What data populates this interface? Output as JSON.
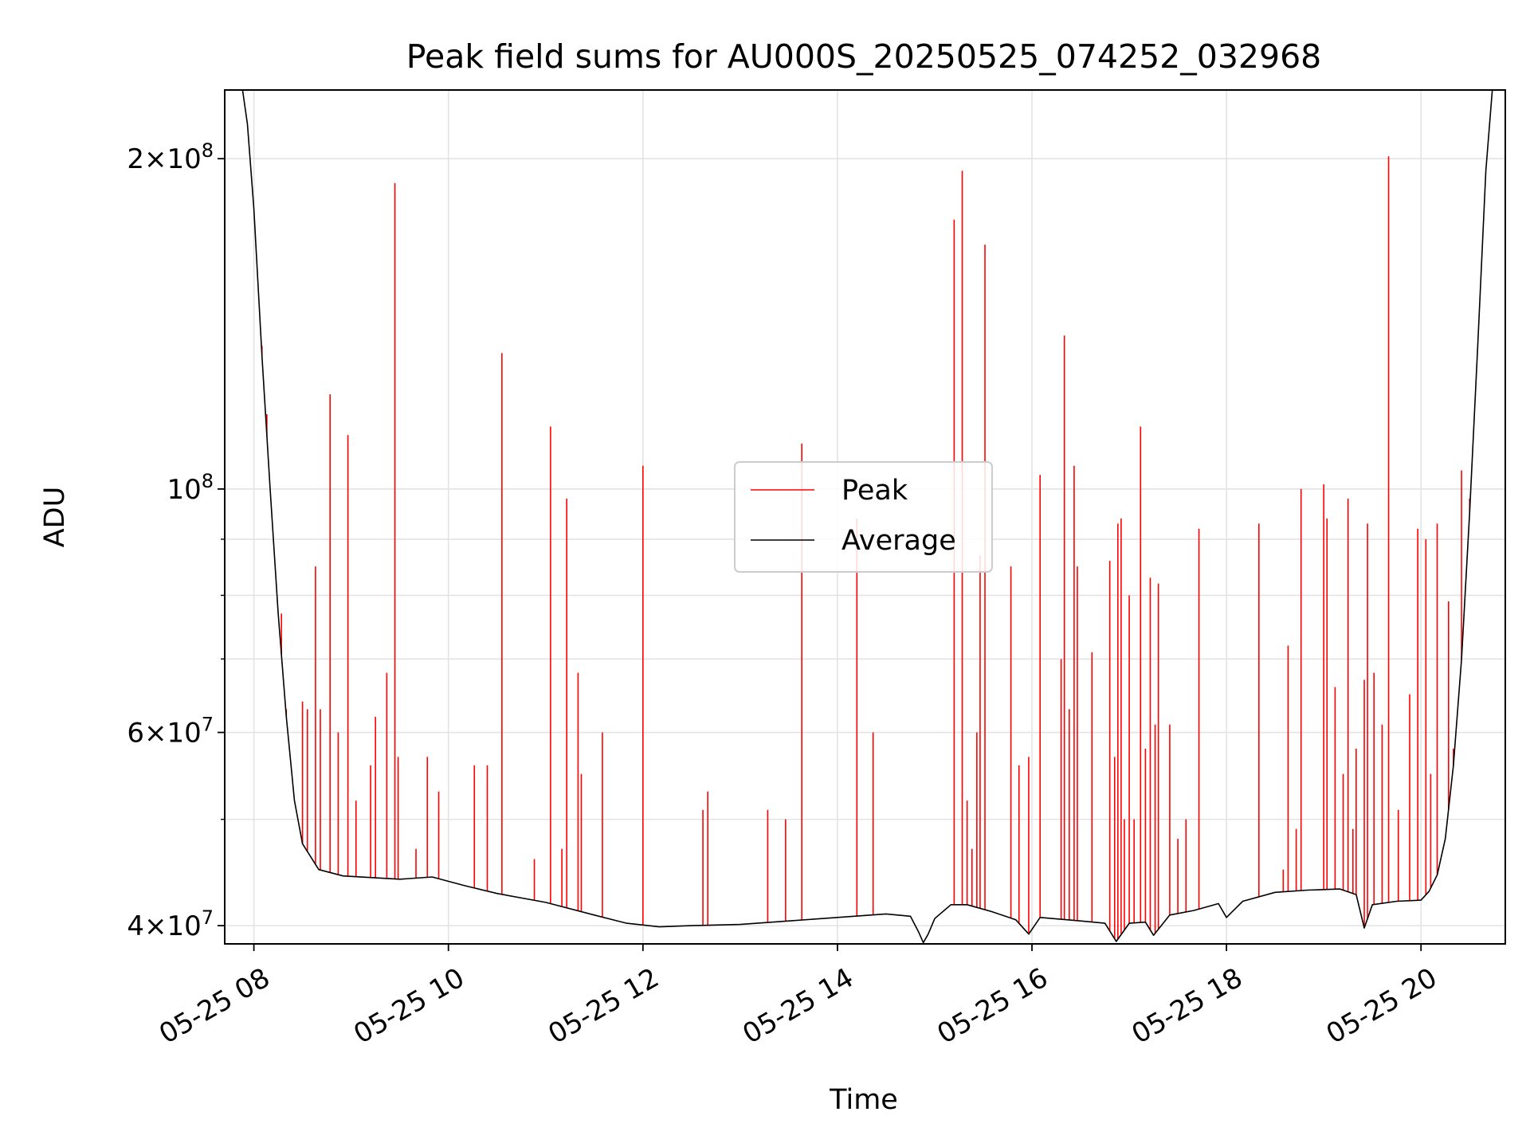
{
  "chart_data": {
    "type": "line",
    "title": "Peak field sums for AU000S_20250525_074252_032968",
    "xlabel": "Time",
    "ylabel": "ADU",
    "y_scale": "log",
    "ylim": [
      38500000,
      231000000
    ],
    "xlim": [
      "2025-05-25 07:42",
      "2025-05-25 20:52"
    ],
    "grid": true,
    "legend_position": "center",
    "x_ticks": [
      {
        "t": "2025-05-25 08:00",
        "label": "05-25 08"
      },
      {
        "t": "2025-05-25 10:00",
        "label": "05-25 10"
      },
      {
        "t": "2025-05-25 12:00",
        "label": "05-25 12"
      },
      {
        "t": "2025-05-25 14:00",
        "label": "05-25 14"
      },
      {
        "t": "2025-05-25 16:00",
        "label": "05-25 16"
      },
      {
        "t": "2025-05-25 18:00",
        "label": "05-25 18"
      },
      {
        "t": "2025-05-25 20:00",
        "label": "05-25 20"
      }
    ],
    "y_ticks": [
      {
        "v": 40000000,
        "mant": "4",
        "exp": "7"
      },
      {
        "v": 60000000,
        "mant": "6",
        "exp": "7"
      },
      {
        "v": 100000000,
        "mant": "",
        "exp": "8"
      },
      {
        "v": 200000000,
        "mant": "2",
        "exp": "8"
      }
    ],
    "y_minor_ticks": [
      50000000,
      70000000,
      80000000,
      90000000
    ],
    "series": [
      {
        "name": "Average",
        "color": "#000000",
        "points": [
          [
            "2025-05-25 07:42",
            231000000
          ],
          [
            "2025-05-25 07:53",
            231000000
          ],
          [
            "2025-05-25 07:56",
            215000000
          ],
          [
            "2025-05-25 08:00",
            180000000
          ],
          [
            "2025-05-25 08:05",
            132000000
          ],
          [
            "2025-05-25 08:10",
            100000000
          ],
          [
            "2025-05-25 08:15",
            77000000
          ],
          [
            "2025-05-25 08:20",
            62000000
          ],
          [
            "2025-05-25 08:25",
            52000000
          ],
          [
            "2025-05-25 08:30",
            47500000
          ],
          [
            "2025-05-25 08:40",
            45000000
          ],
          [
            "2025-05-25 08:55",
            44400000
          ],
          [
            "2025-05-25 09:30",
            44100000
          ],
          [
            "2025-05-25 09:50",
            44300000
          ],
          [
            "2025-05-25 10:10",
            43500000
          ],
          [
            "2025-05-25 10:30",
            42800000
          ],
          [
            "2025-05-25 11:00",
            42000000
          ],
          [
            "2025-05-25 11:30",
            40900000
          ],
          [
            "2025-05-25 11:50",
            40200000
          ],
          [
            "2025-05-25 12:10",
            39900000
          ],
          [
            "2025-05-25 12:30",
            40000000
          ],
          [
            "2025-05-25 13:00",
            40100000
          ],
          [
            "2025-05-25 13:30",
            40400000
          ],
          [
            "2025-05-25 14:00",
            40700000
          ],
          [
            "2025-05-25 14:30",
            41000000
          ],
          [
            "2025-05-25 14:45",
            40800000
          ],
          [
            "2025-05-25 14:50",
            39500000
          ],
          [
            "2025-05-25 14:53",
            38600000
          ],
          [
            "2025-05-25 14:56",
            39300000
          ],
          [
            "2025-05-25 15:00",
            40600000
          ],
          [
            "2025-05-25 15:10",
            41800000
          ],
          [
            "2025-05-25 15:20",
            41800000
          ],
          [
            "2025-05-25 15:35",
            41200000
          ],
          [
            "2025-05-25 15:50",
            40500000
          ],
          [
            "2025-05-25 15:58",
            39300000
          ],
          [
            "2025-05-25 16:05",
            40700000
          ],
          [
            "2025-05-25 16:30",
            40400000
          ],
          [
            "2025-05-25 16:45",
            40200000
          ],
          [
            "2025-05-25 16:52",
            38700000
          ],
          [
            "2025-05-25 17:00",
            40200000
          ],
          [
            "2025-05-25 17:10",
            40300000
          ],
          [
            "2025-05-25 17:15",
            39200000
          ],
          [
            "2025-05-25 17:25",
            40900000
          ],
          [
            "2025-05-25 17:40",
            41300000
          ],
          [
            "2025-05-25 17:55",
            41900000
          ],
          [
            "2025-05-25 18:00",
            40700000
          ],
          [
            "2025-05-25 18:10",
            42100000
          ],
          [
            "2025-05-25 18:30",
            42900000
          ],
          [
            "2025-05-25 18:50",
            43100000
          ],
          [
            "2025-05-25 19:10",
            43200000
          ],
          [
            "2025-05-25 19:20",
            42700000
          ],
          [
            "2025-05-25 19:25",
            39800000
          ],
          [
            "2025-05-25 19:30",
            41800000
          ],
          [
            "2025-05-25 19:45",
            42100000
          ],
          [
            "2025-05-25 20:00",
            42200000
          ],
          [
            "2025-05-25 20:05",
            43000000
          ],
          [
            "2025-05-25 20:10",
            44500000
          ],
          [
            "2025-05-25 20:15",
            48000000
          ],
          [
            "2025-05-25 20:20",
            56000000
          ],
          [
            "2025-05-25 20:25",
            70000000
          ],
          [
            "2025-05-25 20:30",
            95000000
          ],
          [
            "2025-05-25 20:35",
            135000000
          ],
          [
            "2025-05-25 20:40",
            195000000
          ],
          [
            "2025-05-25 20:44",
            231000000
          ],
          [
            "2025-05-25 20:52",
            231000000
          ]
        ]
      },
      {
        "name": "Peak",
        "color": "#ff0000",
        "spikes": [
          [
            "2025-05-25 08:05",
            135000000
          ],
          [
            "2025-05-25 08:08",
            117000000
          ],
          [
            "2025-05-25 08:17",
            77000000
          ],
          [
            "2025-05-25 08:20",
            63000000
          ],
          [
            "2025-05-25 08:30",
            64000000
          ],
          [
            "2025-05-25 08:33",
            63000000
          ],
          [
            "2025-05-25 08:38",
            85000000
          ],
          [
            "2025-05-25 08:41",
            63000000
          ],
          [
            "2025-05-25 08:47",
            122000000
          ],
          [
            "2025-05-25 08:52",
            60000000
          ],
          [
            "2025-05-25 08:58",
            112000000
          ],
          [
            "2025-05-25 09:03",
            52000000
          ],
          [
            "2025-05-25 09:12",
            56000000
          ],
          [
            "2025-05-25 09:15",
            62000000
          ],
          [
            "2025-05-25 09:22",
            68000000
          ],
          [
            "2025-05-25 09:27",
            190000000
          ],
          [
            "2025-05-25 09:29",
            57000000
          ],
          [
            "2025-05-25 09:40",
            47000000
          ],
          [
            "2025-05-25 09:47",
            57000000
          ],
          [
            "2025-05-25 09:54",
            53000000
          ],
          [
            "2025-05-25 10:16",
            56000000
          ],
          [
            "2025-05-25 10:24",
            56000000
          ],
          [
            "2025-05-25 10:33",
            133000000
          ],
          [
            "2025-05-25 10:53",
            46000000
          ],
          [
            "2025-05-25 11:03",
            114000000
          ],
          [
            "2025-05-25 11:10",
            47000000
          ],
          [
            "2025-05-25 11:13",
            98000000
          ],
          [
            "2025-05-25 11:20",
            68000000
          ],
          [
            "2025-05-25 11:22",
            55000000
          ],
          [
            "2025-05-25 11:35",
            60000000
          ],
          [
            "2025-05-25 12:00",
            105000000
          ],
          [
            "2025-05-25 12:37",
            51000000
          ],
          [
            "2025-05-25 12:40",
            53000000
          ],
          [
            "2025-05-25 13:17",
            51000000
          ],
          [
            "2025-05-25 13:28",
            50000000
          ],
          [
            "2025-05-25 13:38",
            110000000
          ],
          [
            "2025-05-25 14:12",
            94000000
          ],
          [
            "2025-05-25 14:22",
            60000000
          ],
          [
            "2025-05-25 15:12",
            176000000
          ],
          [
            "2025-05-25 15:17",
            195000000
          ],
          [
            "2025-05-25 15:20",
            52000000
          ],
          [
            "2025-05-25 15:23",
            47000000
          ],
          [
            "2025-05-25 15:26",
            60000000
          ],
          [
            "2025-05-25 15:28",
            87000000
          ],
          [
            "2025-05-25 15:31",
            167000000
          ],
          [
            "2025-05-25 15:47",
            85000000
          ],
          [
            "2025-05-25 15:52",
            56000000
          ],
          [
            "2025-05-25 15:58",
            57000000
          ],
          [
            "2025-05-25 16:05",
            103000000
          ],
          [
            "2025-05-25 16:18",
            70000000
          ],
          [
            "2025-05-25 16:20",
            138000000
          ],
          [
            "2025-05-25 16:23",
            63000000
          ],
          [
            "2025-05-25 16:26",
            105000000
          ],
          [
            "2025-05-25 16:28",
            85000000
          ],
          [
            "2025-05-25 16:37",
            71000000
          ],
          [
            "2025-05-25 16:48",
            86000000
          ],
          [
            "2025-05-25 16:51",
            57000000
          ],
          [
            "2025-05-25 16:53",
            93000000
          ],
          [
            "2025-05-25 16:55",
            94000000
          ],
          [
            "2025-05-25 16:57",
            50000000
          ],
          [
            "2025-05-25 17:00",
            80000000
          ],
          [
            "2025-05-25 17:03",
            50000000
          ],
          [
            "2025-05-25 17:07",
            114000000
          ],
          [
            "2025-05-25 17:10",
            58000000
          ],
          [
            "2025-05-25 17:13",
            83000000
          ],
          [
            "2025-05-25 17:16",
            61000000
          ],
          [
            "2025-05-25 17:18",
            82000000
          ],
          [
            "2025-05-25 17:25",
            61000000
          ],
          [
            "2025-05-25 17:30",
            48000000
          ],
          [
            "2025-05-25 17:35",
            50000000
          ],
          [
            "2025-05-25 17:43",
            92000000
          ],
          [
            "2025-05-25 18:20",
            93000000
          ],
          [
            "2025-05-25 18:35",
            45000000
          ],
          [
            "2025-05-25 18:38",
            72000000
          ],
          [
            "2025-05-25 18:43",
            49000000
          ],
          [
            "2025-05-25 18:46",
            100000000
          ],
          [
            "2025-05-25 19:00",
            101000000
          ],
          [
            "2025-05-25 19:02",
            94000000
          ],
          [
            "2025-05-25 19:07",
            66000000
          ],
          [
            "2025-05-25 19:12",
            55000000
          ],
          [
            "2025-05-25 19:15",
            98000000
          ],
          [
            "2025-05-25 19:18",
            49000000
          ],
          [
            "2025-05-25 19:20",
            58000000
          ],
          [
            "2025-05-25 19:25",
            67000000
          ],
          [
            "2025-05-25 19:27",
            93000000
          ],
          [
            "2025-05-25 19:31",
            68000000
          ],
          [
            "2025-05-25 19:36",
            61000000
          ],
          [
            "2025-05-25 19:40",
            201000000
          ],
          [
            "2025-05-25 19:46",
            51000000
          ],
          [
            "2025-05-25 19:53",
            65000000
          ],
          [
            "2025-05-25 19:58",
            92000000
          ],
          [
            "2025-05-25 20:03",
            90000000
          ],
          [
            "2025-05-25 20:06",
            55000000
          ],
          [
            "2025-05-25 20:10",
            93000000
          ],
          [
            "2025-05-25 20:17",
            79000000
          ],
          [
            "2025-05-25 20:20",
            58000000
          ],
          [
            "2025-05-25 20:25",
            104000000
          ],
          [
            "2025-05-25 20:30",
            98000000
          ]
        ]
      }
    ]
  }
}
